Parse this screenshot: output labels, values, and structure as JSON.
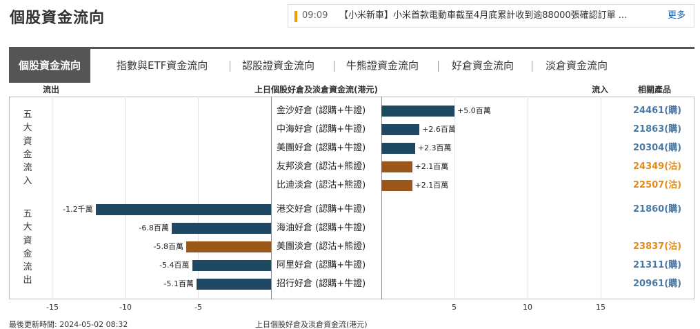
{
  "page_title": "個股資金流向",
  "ticker": {
    "time": "09:09",
    "headline": "【小米新車】小米首款電動車截至4月底累計收到逾88000張確認訂單 ...",
    "more_label": "更多"
  },
  "tabs": [
    {
      "label": "個股資金流向",
      "active": true
    },
    {
      "label": "指數與ETF資金流向",
      "active": false
    },
    {
      "label": "認股證資金流向",
      "active": false
    },
    {
      "label": "牛熊證資金流向",
      "active": false
    },
    {
      "label": "好倉資金流向",
      "active": false
    },
    {
      "label": "淡倉資金流向",
      "active": false
    }
  ],
  "headers": {
    "outflow": "流出",
    "center": "上日個股好倉及淡倉資金流(港元)",
    "inflow": "流入",
    "related": "相關產品"
  },
  "groups": {
    "inflow_label": "五大資金流入",
    "outflow_label": "五大資金流出"
  },
  "colors": {
    "long": "#1f4863",
    "short": "#9a5718",
    "long_product": "#4a7aa3",
    "short_product": "#e08b1a"
  },
  "chart_data": {
    "type": "bar",
    "orientation": "horizontal",
    "title": "上日個股好倉及淡倉資金流(港元)",
    "unit": "百萬港元",
    "xlim": [
      -15,
      15
    ],
    "x_ticks": [
      -15,
      -10,
      -5,
      5,
      10,
      15
    ],
    "grid": true,
    "rows": [
      {
        "label": "金沙好倉 (認購+牛證)",
        "value": 5.0,
        "value_label": "+5.0百萬",
        "kind": "long",
        "product": "24461(購)"
      },
      {
        "label": "中海好倉 (認購+牛證)",
        "value": 2.6,
        "value_label": "+2.6百萬",
        "kind": "long",
        "product": "21863(購)"
      },
      {
        "label": "美團好倉 (認購+牛證)",
        "value": 2.3,
        "value_label": "+2.3百萬",
        "kind": "long",
        "product": "20304(購)"
      },
      {
        "label": "友邦淡倉 (認沽+熊證)",
        "value": 2.1,
        "value_label": "+2.1百萬",
        "kind": "short",
        "product": "24349(沽)"
      },
      {
        "label": "比迪淡倉 (認沽+熊證)",
        "value": 2.1,
        "value_label": "+2.1百萬",
        "kind": "short",
        "product": "22507(沽)"
      },
      {
        "label": "港交好倉 (認購+牛證)",
        "value": -12.0,
        "value_label": "-1.2千萬",
        "kind": "long",
        "product": "21860(購)"
      },
      {
        "label": "海油好倉 (認購+牛證)",
        "value": -6.8,
        "value_label": "-6.8百萬",
        "kind": "long",
        "product": ""
      },
      {
        "label": "美團淡倉 (認沽+熊證)",
        "value": -5.8,
        "value_label": "-5.8百萬",
        "kind": "short",
        "product": "23837(沽)"
      },
      {
        "label": "阿里好倉 (認購+牛證)",
        "value": -5.4,
        "value_label": "-5.4百萬",
        "kind": "long",
        "product": "21311(購)"
      },
      {
        "label": "招行好倉 (認購+牛證)",
        "value": -5.1,
        "value_label": "-5.1百萬",
        "kind": "long",
        "product": "20961(購)"
      }
    ]
  },
  "footer": {
    "updated": "最後更新時間: 2024-05-02 08:32",
    "caption": "上日個股好倉及淡倉資金流(港元)"
  }
}
